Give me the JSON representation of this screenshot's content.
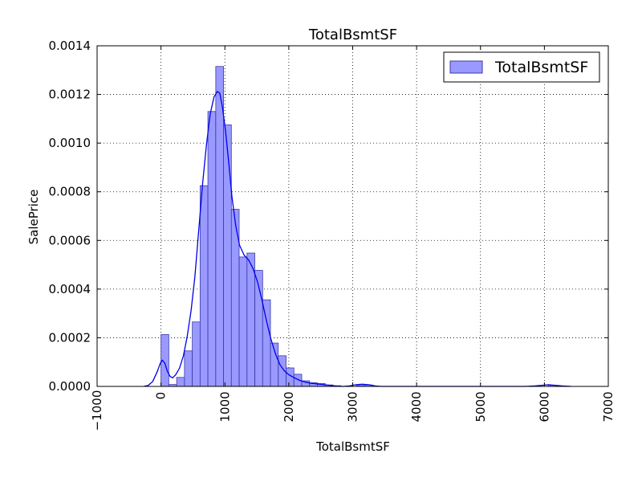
{
  "chart_data": {
    "type": "bar",
    "title": "TotalBsmtSF",
    "xlabel": "TotalBsmtSF",
    "ylabel": "SalePrice",
    "xlim": [
      -1000,
      7000
    ],
    "ylim": [
      0,
      0.0014
    ],
    "xticks": [
      -1000,
      0,
      1000,
      2000,
      3000,
      4000,
      5000,
      6000,
      7000
    ],
    "xtick_labels": [
      "−1000",
      "0",
      "1000",
      "2000",
      "3000",
      "4000",
      "5000",
      "6000",
      "7000"
    ],
    "yticks": [
      0,
      0.0002,
      0.0004,
      0.0006,
      0.0008,
      0.001,
      0.0012,
      0.0014
    ],
    "ytick_labels": [
      "0.0000",
      "0.0002",
      "0.0004",
      "0.0006",
      "0.0008",
      "0.0010",
      "0.0012",
      "0.0014"
    ],
    "grid": true,
    "legend_position": "top-right",
    "legend_label": "TotalBsmtSF",
    "bar_color": "#9999ff",
    "bar_edge_color": "#3a3aa8",
    "line_color": "#0000ee",
    "bin_width": 122,
    "histogram": [
      {
        "x": 0,
        "y": 0.000213
      },
      {
        "x": 122,
        "y": 8e-06
      },
      {
        "x": 245,
        "y": 3.7e-05
      },
      {
        "x": 367,
        "y": 0.000146
      },
      {
        "x": 490,
        "y": 0.000265
      },
      {
        "x": 612,
        "y": 0.000825
      },
      {
        "x": 734,
        "y": 0.00113
      },
      {
        "x": 857,
        "y": 0.001315
      },
      {
        "x": 979,
        "y": 0.001075
      },
      {
        "x": 1101,
        "y": 0.000728
      },
      {
        "x": 1224,
        "y": 0.000532
      },
      {
        "x": 1346,
        "y": 0.000548
      },
      {
        "x": 1469,
        "y": 0.000477
      },
      {
        "x": 1591,
        "y": 0.000356
      },
      {
        "x": 1713,
        "y": 0.000178
      },
      {
        "x": 1836,
        "y": 0.000126
      },
      {
        "x": 1958,
        "y": 7.6e-05
      },
      {
        "x": 2080,
        "y": 5e-05
      },
      {
        "x": 2203,
        "y": 2.3e-05
      },
      {
        "x": 2325,
        "y": 1.5e-05
      },
      {
        "x": 2448,
        "y": 1.2e-05
      },
      {
        "x": 2570,
        "y": 6e-06
      },
      {
        "x": 2692,
        "y": 3e-06
      },
      {
        "x": 3059,
        "y": 4e-06
      },
      {
        "x": 3182,
        "y": 6e-06
      },
      {
        "x": 6060,
        "y": 5e-06
      }
    ],
    "kde": [
      [
        -270,
        0
      ],
      [
        -200,
        4e-06
      ],
      [
        -130,
        2e-05
      ],
      [
        -60,
        6e-05
      ],
      [
        -10,
        9.6e-05
      ],
      [
        20,
        0.000108
      ],
      [
        60,
        9.5e-05
      ],
      [
        100,
        6.2e-05
      ],
      [
        140,
        4.2e-05
      ],
      [
        180,
        3.5e-05
      ],
      [
        230,
        4.8e-05
      ],
      [
        290,
        7.5e-05
      ],
      [
        350,
        0.000125
      ],
      [
        410,
        0.000205
      ],
      [
        470,
        0.00031
      ],
      [
        530,
        0.00045
      ],
      [
        590,
        0.00064
      ],
      [
        650,
        0.00083
      ],
      [
        710,
        0.00099
      ],
      [
        770,
        0.00112
      ],
      [
        830,
        0.00119
      ],
      [
        880,
        0.001212
      ],
      [
        920,
        0.001205
      ],
      [
        960,
        0.00115
      ],
      [
        1010,
        0.00105
      ],
      [
        1060,
        0.00092
      ],
      [
        1110,
        0.00078
      ],
      [
        1170,
        0.00066
      ],
      [
        1230,
        0.00058
      ],
      [
        1300,
        0.00054
      ],
      [
        1370,
        0.00052
      ],
      [
        1440,
        0.000485
      ],
      [
        1510,
        0.00043
      ],
      [
        1580,
        0.000355
      ],
      [
        1650,
        0.00027
      ],
      [
        1720,
        0.000195
      ],
      [
        1790,
        0.000135
      ],
      [
        1860,
        9e-05
      ],
      [
        1930,
        6.4e-05
      ],
      [
        2000,
        4.8e-05
      ],
      [
        2080,
        3.6e-05
      ],
      [
        2160,
        2.6e-05
      ],
      [
        2250,
        1.8e-05
      ],
      [
        2350,
        1.3e-05
      ],
      [
        2450,
        1e-05
      ],
      [
        2550,
        7e-06
      ],
      [
        2650,
        4e-06
      ],
      [
        2750,
        1e-06
      ],
      [
        2850,
        0
      ],
      [
        2950,
        2e-06
      ],
      [
        3050,
        7e-06
      ],
      [
        3150,
        9e-06
      ],
      [
        3250,
        7e-06
      ],
      [
        3350,
        2e-06
      ],
      [
        3450,
        0
      ],
      [
        5700,
        0
      ],
      [
        5850,
        2e-06
      ],
      [
        5980,
        5e-06
      ],
      [
        6060,
        7e-06
      ],
      [
        6150,
        5e-06
      ],
      [
        6280,
        2e-06
      ],
      [
        6420,
        0
      ]
    ]
  }
}
